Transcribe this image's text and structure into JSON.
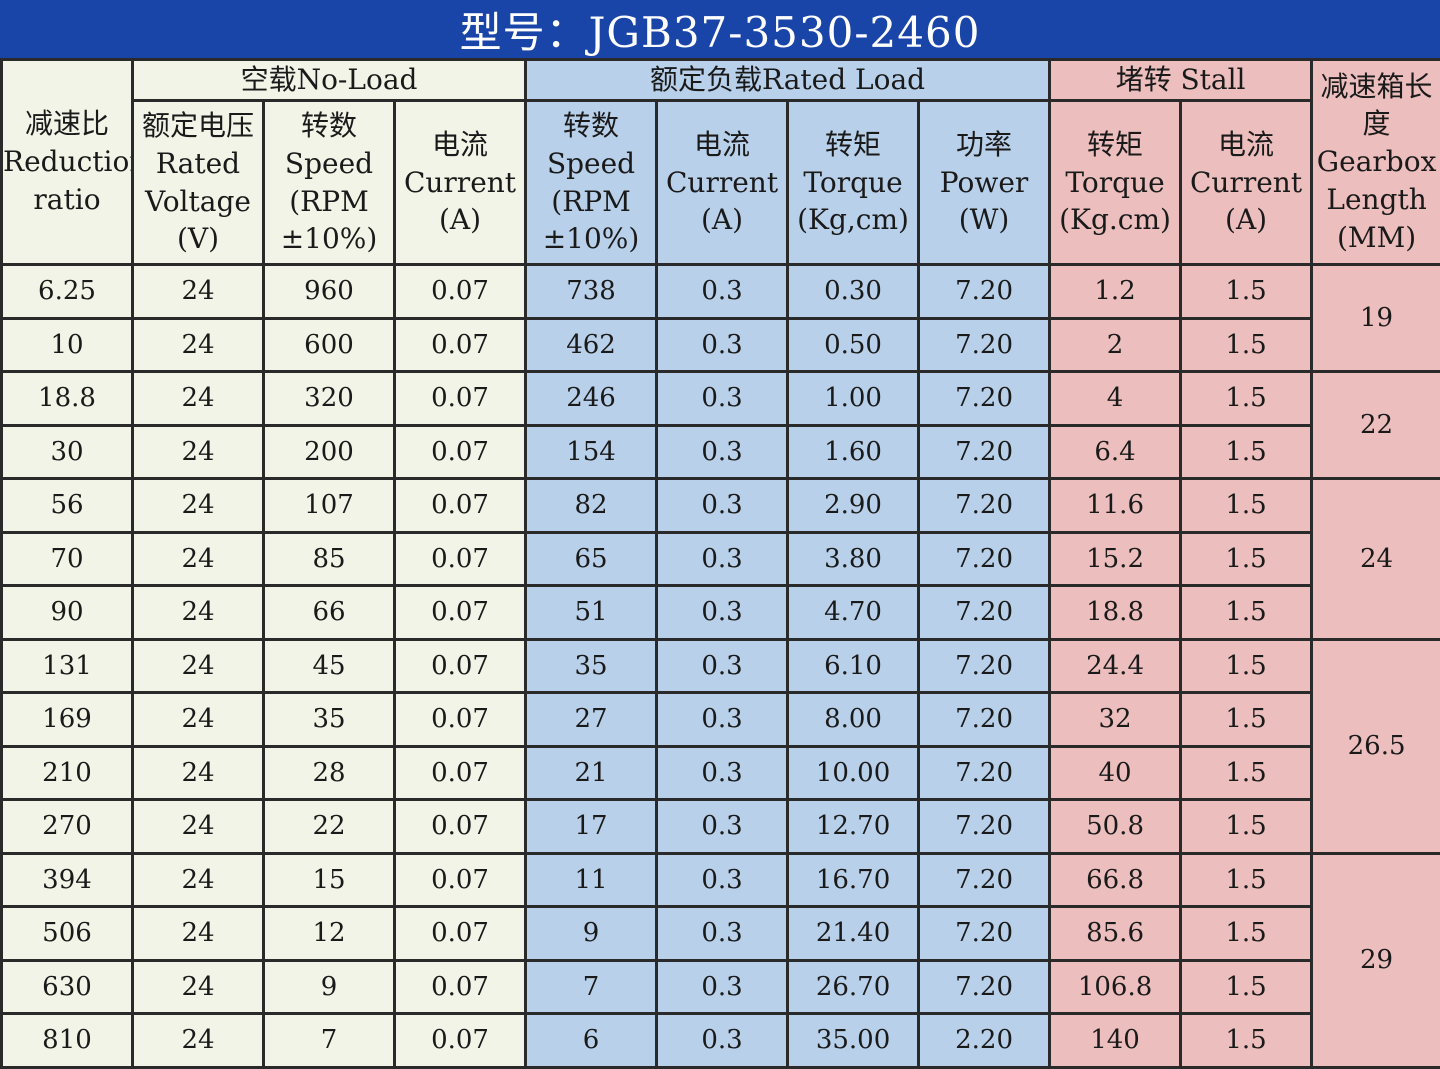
{
  "title": "型号：JGB37-3530-2460",
  "colors": {
    "title_bg": "#1a45a8",
    "no_load_bg": "#f2f4e8",
    "rated_bg": "#b9d0ea",
    "stall_bg": "#ecbebe"
  },
  "headers": {
    "ratio": "减速比Reduction ratio",
    "no_load_group": "空载No-Load",
    "rated_group": "额定负载Rated Load",
    "stall_group": "堵转 Stall",
    "length": "减速箱长度Gearbox Length (MM)",
    "nl_voltage": "额定电压Rated Voltage (V)",
    "nl_speed": "转数Speed (RPM ±10%)",
    "nl_current": "电流Current (A)",
    "rl_speed": "转数Speed (RPM ±10%)",
    "rl_current": "电流Current (A)",
    "rl_torque": "转矩Torque (Kg,cm)",
    "rl_power": "功率Power (W)",
    "st_torque": "转矩Torque (Kg.cm)",
    "st_current": "电流Current (A)"
  },
  "rows": [
    [
      "6.25",
      "24",
      "960",
      "0.07",
      "738",
      "0.3",
      "0.30",
      "7.20",
      "1.2",
      "1.5"
    ],
    [
      "10",
      "24",
      "600",
      "0.07",
      "462",
      "0.3",
      "0.50",
      "7.20",
      "2",
      "1.5"
    ],
    [
      "18.8",
      "24",
      "320",
      "0.07",
      "246",
      "0.3",
      "1.00",
      "7.20",
      "4",
      "1.5"
    ],
    [
      "30",
      "24",
      "200",
      "0.07",
      "154",
      "0.3",
      "1.60",
      "7.20",
      "6.4",
      "1.5"
    ],
    [
      "56",
      "24",
      "107",
      "0.07",
      "82",
      "0.3",
      "2.90",
      "7.20",
      "11.6",
      "1.5"
    ],
    [
      "70",
      "24",
      "85",
      "0.07",
      "65",
      "0.3",
      "3.80",
      "7.20",
      "15.2",
      "1.5"
    ],
    [
      "90",
      "24",
      "66",
      "0.07",
      "51",
      "0.3",
      "4.70",
      "7.20",
      "18.8",
      "1.5"
    ],
    [
      "131",
      "24",
      "45",
      "0.07",
      "35",
      "0.3",
      "6.10",
      "7.20",
      "24.4",
      "1.5"
    ],
    [
      "169",
      "24",
      "35",
      "0.07",
      "27",
      "0.3",
      "8.00",
      "7.20",
      "32",
      "1.5"
    ],
    [
      "210",
      "24",
      "28",
      "0.07",
      "21",
      "0.3",
      "10.00",
      "7.20",
      "40",
      "1.5"
    ],
    [
      "270",
      "24",
      "22",
      "0.07",
      "17",
      "0.3",
      "12.70",
      "7.20",
      "50.8",
      "1.5"
    ],
    [
      "394",
      "24",
      "15",
      "0.07",
      "11",
      "0.3",
      "16.70",
      "7.20",
      "66.8",
      "1.5"
    ],
    [
      "506",
      "24",
      "12",
      "0.07",
      "9",
      "0.3",
      "21.40",
      "7.20",
      "85.6",
      "1.5"
    ],
    [
      "630",
      "24",
      "9",
      "0.07",
      "7",
      "0.3",
      "26.70",
      "7.20",
      "106.8",
      "1.5"
    ],
    [
      "810",
      "24",
      "7",
      "0.07",
      "6",
      "0.3",
      "35.00",
      "2.20",
      "140",
      "1.5"
    ]
  ],
  "gearbox_length": [
    {
      "value": "19",
      "rows": 2
    },
    {
      "value": "22",
      "rows": 2
    },
    {
      "value": "24",
      "rows": 3
    },
    {
      "value": "26.5",
      "rows": 4
    },
    {
      "value": "29",
      "rows": 4
    }
  ]
}
